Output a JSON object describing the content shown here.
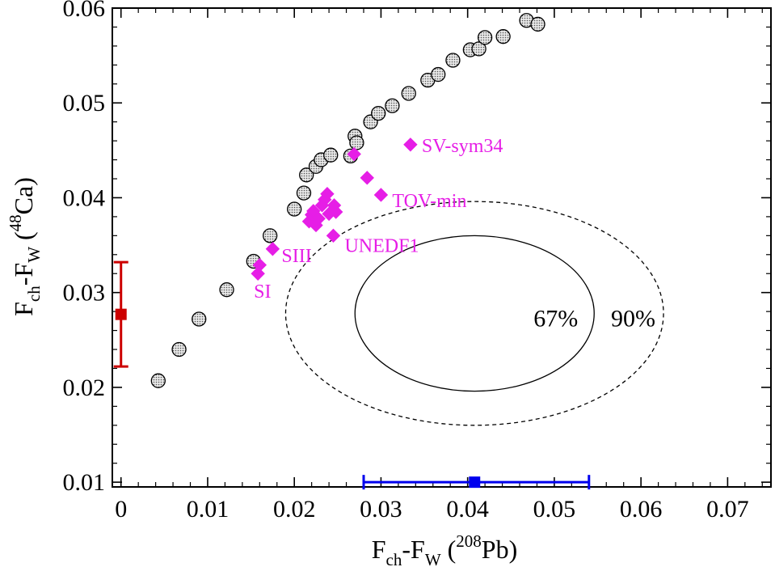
{
  "chart_data": {
    "type": "scatter",
    "title": "",
    "xlabel": {
      "main": "F",
      "sub1": "ch",
      "mid": "-F",
      "sub2": "W",
      "open": " (",
      "sup": "208",
      "nuc": "Pb",
      "close": ")"
    },
    "ylabel": {
      "main": "F",
      "sub1": "ch",
      "mid": "-F",
      "sub2": "W",
      "open": " (",
      "sup": "48",
      "nuc": "Ca",
      "close": ")"
    },
    "xlim": [
      -0.001,
      0.075
    ],
    "ylim": [
      0.0095,
      0.06
    ],
    "x_ticks": [
      0,
      0.01,
      0.02,
      0.03,
      0.04,
      0.05,
      0.06,
      0.07
    ],
    "x_tick_labels": [
      "0",
      "0.01",
      "0.02",
      "0.03",
      "0.04",
      "0.05",
      "0.06",
      "0.07"
    ],
    "y_ticks": [
      0.01,
      0.02,
      0.03,
      0.04,
      0.05,
      0.06
    ],
    "y_tick_labels": [
      "0.01",
      "0.02",
      "0.03",
      "0.04",
      "0.05",
      "0.06"
    ],
    "grid": false,
    "colors": {
      "circle_fill": "#bfbfbf",
      "model": "#e61ee6",
      "red": "#cc0000",
      "blue": "#0000ee"
    },
    "series": [
      {
        "marker": "circle",
        "points": [
          [
            0.0043,
            0.0207
          ],
          [
            0.0067,
            0.024
          ],
          [
            0.009,
            0.0272
          ],
          [
            0.0122,
            0.0303
          ],
          [
            0.0153,
            0.0333
          ],
          [
            0.0172,
            0.036
          ],
          [
            0.02,
            0.0388
          ],
          [
            0.0211,
            0.0405
          ],
          [
            0.0214,
            0.0424
          ],
          [
            0.0225,
            0.0433
          ],
          [
            0.0231,
            0.044
          ],
          [
            0.0242,
            0.0445
          ],
          [
            0.0265,
            0.0444
          ],
          [
            0.027,
            0.0465
          ],
          [
            0.0272,
            0.0458
          ],
          [
            0.0288,
            0.048
          ],
          [
            0.0297,
            0.0489
          ],
          [
            0.0313,
            0.0497
          ],
          [
            0.0332,
            0.051
          ],
          [
            0.0354,
            0.0524
          ],
          [
            0.0366,
            0.053
          ],
          [
            0.0383,
            0.0545
          ],
          [
            0.0403,
            0.0556
          ],
          [
            0.0413,
            0.0557
          ],
          [
            0.042,
            0.0569
          ],
          [
            0.0441,
            0.057
          ],
          [
            0.0468,
            0.0587
          ],
          [
            0.0481,
            0.0583
          ]
        ]
      },
      {
        "marker": "diamond",
        "points": [
          [
            0.0158,
            0.032
          ],
          [
            0.016,
            0.0329
          ],
          [
            0.0175,
            0.0346
          ],
          [
            0.0217,
            0.0375
          ],
          [
            0.022,
            0.0382
          ],
          [
            0.0225,
            0.0371
          ],
          [
            0.0222,
            0.0386
          ],
          [
            0.0228,
            0.0378
          ],
          [
            0.0232,
            0.0392
          ],
          [
            0.0235,
            0.0398
          ],
          [
            0.0238,
            0.0404
          ],
          [
            0.024,
            0.0383
          ],
          [
            0.0246,
            0.0392
          ],
          [
            0.0248,
            0.0385
          ],
          [
            0.0245,
            0.036
          ],
          [
            0.0269,
            0.0446
          ],
          [
            0.0284,
            0.0421
          ],
          [
            0.03,
            0.0403
          ],
          [
            0.0334,
            0.0456
          ]
        ]
      }
    ],
    "annotations": [
      {
        "text": "SV-sym34",
        "x": 0.0334,
        "y": 0.0456
      },
      {
        "text": "TOV-min",
        "x": 0.03,
        "y": 0.0403
      },
      {
        "text": "UNEDF1",
        "x": 0.0245,
        "y": 0.036
      },
      {
        "text": "SIII",
        "x": 0.0175,
        "y": 0.0346
      },
      {
        "text": "SI",
        "x": 0.0158,
        "y": 0.032
      }
    ],
    "ellipses": [
      {
        "label": "67%",
        "cx": 0.0408,
        "cy": 0.0278,
        "rx": 0.0138,
        "ry": 0.0082,
        "style": "solid"
      },
      {
        "label": "90%",
        "cx": 0.0408,
        "cy": 0.0278,
        "rx": 0.0218,
        "ry": 0.0118,
        "style": "dashed"
      }
    ],
    "error_bars": [
      {
        "axis": "y",
        "x": 0,
        "y": 0.0277,
        "low": 0.0222,
        "high": 0.0332,
        "color": "red"
      },
      {
        "axis": "x",
        "x": 0.0408,
        "y": 0.01,
        "low": 0.028,
        "high": 0.054,
        "color": "blue"
      }
    ]
  }
}
